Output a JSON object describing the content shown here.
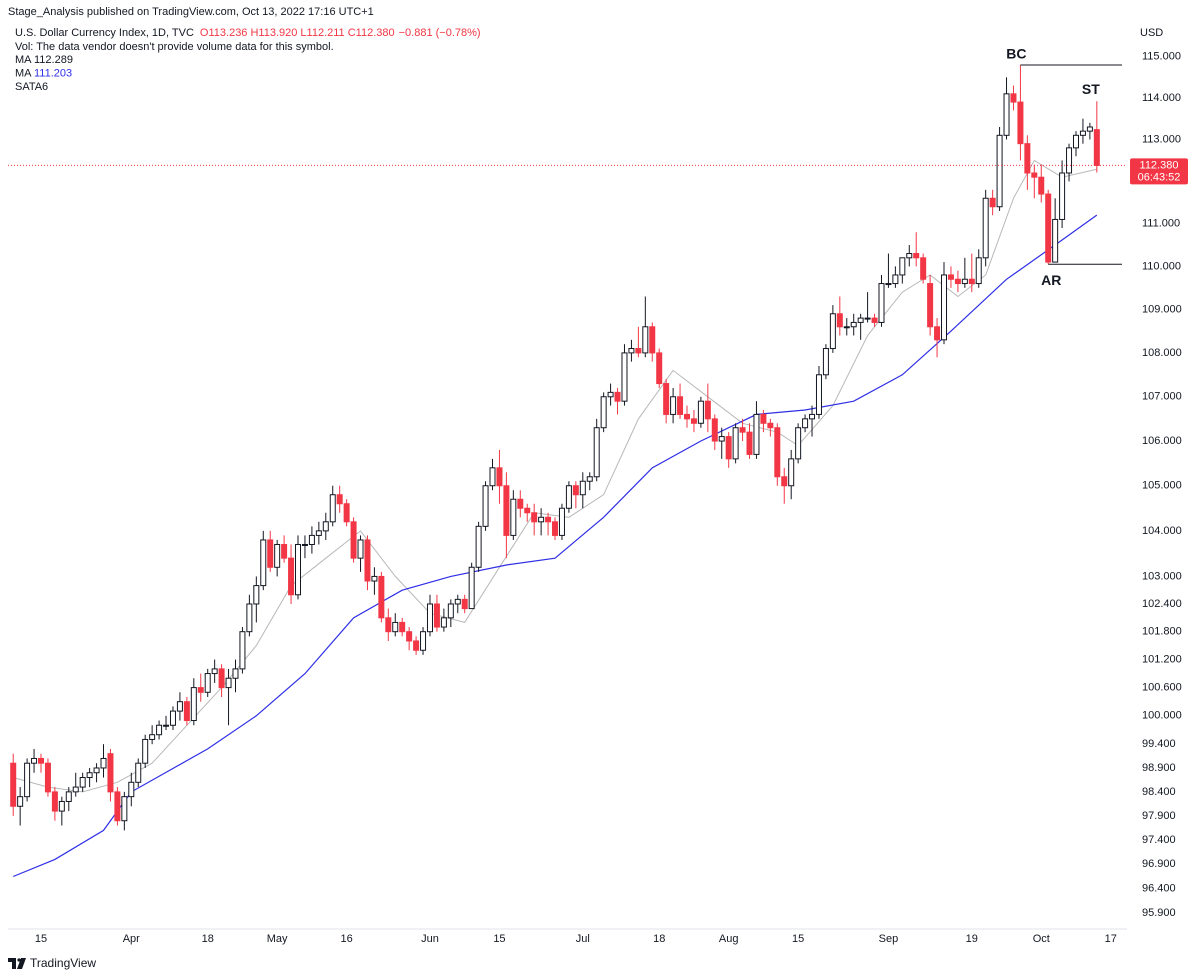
{
  "header": {
    "publisher": "Stage_Analysis published on TradingView.com, Oct 13, 2022 17:16 UTC+1",
    "footer_brand": "TradingView"
  },
  "chart_data": {
    "type": "candlestick",
    "symbol": "U.S. Dollar Currency Index, 1D, TVC",
    "ohlc_text": "O113.236 H113.920 L112.211 C112.380",
    "change_text": "−0.881 (−0.78%)",
    "volume_note": "Vol: The data vendor doesn't provide volume data for this symbol.",
    "axis_unit": "USD",
    "last_price_label": "112.380",
    "countdown": "06:43:52",
    "log": true,
    "grid": false,
    "up_color": "#ffffff",
    "down_color": "#f23645",
    "outline_color": "#131722",
    "xlim": [
      -0.75,
      160.2
    ],
    "ylim": [
      95.6,
      115.9
    ],
    "xticks": [
      {
        "value": 4,
        "label": "15"
      },
      {
        "value": 17,
        "label": "Apr"
      },
      {
        "value": 28,
        "label": "18"
      },
      {
        "value": 38,
        "label": "May"
      },
      {
        "value": 48,
        "label": "16"
      },
      {
        "value": 60,
        "label": "Jun"
      },
      {
        "value": 70,
        "label": "15"
      },
      {
        "value": 82,
        "label": "Jul"
      },
      {
        "value": 93,
        "label": "18"
      },
      {
        "value": 103,
        "label": "Aug"
      },
      {
        "value": 113,
        "label": "15"
      },
      {
        "value": 126,
        "label": "Sep"
      },
      {
        "value": 138,
        "label": "19"
      },
      {
        "value": 148,
        "label": "Oct"
      },
      {
        "value": 158,
        "label": "17"
      }
    ],
    "yticks": [
      {
        "value": 115,
        "label": "115.000"
      },
      {
        "value": 114,
        "label": "114.000"
      },
      {
        "value": 113,
        "label": "113.000"
      },
      {
        "value": 111,
        "label": "111.000"
      },
      {
        "value": 110,
        "label": "110.000"
      },
      {
        "value": 109,
        "label": "109.000"
      },
      {
        "value": 108,
        "label": "108.000"
      },
      {
        "value": 107,
        "label": "107.000"
      },
      {
        "value": 106,
        "label": "106.000"
      },
      {
        "value": 105,
        "label": "105.000"
      },
      {
        "value": 104,
        "label": "104.000"
      },
      {
        "value": 103,
        "label": "103.000"
      },
      {
        "value": 102.4,
        "label": "102.400"
      },
      {
        "value": 101.8,
        "label": "101.800"
      },
      {
        "value": 101.2,
        "label": "101.200"
      },
      {
        "value": 100.6,
        "label": "100.600"
      },
      {
        "value": 100,
        "label": "100.000"
      },
      {
        "value": 99.4,
        "label": "99.400"
      },
      {
        "value": 98.9,
        "label": "98.900"
      },
      {
        "value": 98.4,
        "label": "98.400"
      },
      {
        "value": 97.9,
        "label": "97.900"
      },
      {
        "value": 97.4,
        "label": "97.400"
      },
      {
        "value": 96.9,
        "label": "96.900"
      },
      {
        "value": 96.4,
        "label": "96.400"
      },
      {
        "value": 95.9,
        "label": "95.900"
      }
    ],
    "candles": [
      [
        99.0,
        99.2,
        97.9,
        98.1
      ],
      [
        98.1,
        98.5,
        97.7,
        98.3
      ],
      [
        98.3,
        99.1,
        98.2,
        99.0
      ],
      [
        99.0,
        99.3,
        98.8,
        99.1
      ],
      [
        99.1,
        99.2,
        98.8,
        99.0
      ],
      [
        99.0,
        99.1,
        98.3,
        98.4
      ],
      [
        98.4,
        98.5,
        97.8,
        98.0
      ],
      [
        98.0,
        98.3,
        97.7,
        98.2
      ],
      [
        98.2,
        98.5,
        98.0,
        98.4
      ],
      [
        98.4,
        98.8,
        98.3,
        98.5
      ],
      [
        98.5,
        98.8,
        98.4,
        98.7
      ],
      [
        98.7,
        98.9,
        98.5,
        98.8
      ],
      [
        98.8,
        99.0,
        98.6,
        98.9
      ],
      [
        98.9,
        99.4,
        98.7,
        99.1
      ],
      [
        99.2,
        99.3,
        98.2,
        98.4
      ],
      [
        98.4,
        98.5,
        97.7,
        97.8
      ],
      [
        97.8,
        98.4,
        97.6,
        98.3
      ],
      [
        98.3,
        98.8,
        98.1,
        98.6
      ],
      [
        98.6,
        99.1,
        98.5,
        99.0
      ],
      [
        99.0,
        99.6,
        98.9,
        99.5
      ],
      [
        99.5,
        99.8,
        99.4,
        99.6
      ],
      [
        99.6,
        99.9,
        99.5,
        99.8
      ],
      [
        99.8,
        100.0,
        99.7,
        99.8
      ],
      [
        99.8,
        100.2,
        99.7,
        100.1
      ],
      [
        100.1,
        100.5,
        99.9,
        100.3
      ],
      [
        100.3,
        100.4,
        99.8,
        99.9
      ],
      [
        99.9,
        100.8,
        99.8,
        100.6
      ],
      [
        100.6,
        100.9,
        100.3,
        100.5
      ],
      [
        100.5,
        101.0,
        100.4,
        100.9
      ],
      [
        100.9,
        101.2,
        100.7,
        101.0
      ],
      [
        101.0,
        101.1,
        100.4,
        100.6
      ],
      [
        100.6,
        101.0,
        99.8,
        100.8
      ],
      [
        100.8,
        101.2,
        100.5,
        101.0
      ],
      [
        101.0,
        101.9,
        100.9,
        101.8
      ],
      [
        101.8,
        102.6,
        101.7,
        102.4
      ],
      [
        102.4,
        103.0,
        102.0,
        102.8
      ],
      [
        102.8,
        104.0,
        102.7,
        103.8
      ],
      [
        103.8,
        104.0,
        103.1,
        103.2
      ],
      [
        103.2,
        103.8,
        103.0,
        103.7
      ],
      [
        103.7,
        103.9,
        103.3,
        103.4
      ],
      [
        103.4,
        103.7,
        102.4,
        102.6
      ],
      [
        102.6,
        103.9,
        102.5,
        103.7
      ],
      [
        103.7,
        103.9,
        103.4,
        103.7
      ],
      [
        103.7,
        104.1,
        103.5,
        103.9
      ],
      [
        103.9,
        104.2,
        103.7,
        104.0
      ],
      [
        104.0,
        104.4,
        103.8,
        104.2
      ],
      [
        104.2,
        105.0,
        104.1,
        104.8
      ],
      [
        104.8,
        105.0,
        104.4,
        104.6
      ],
      [
        104.6,
        104.7,
        104.1,
        104.2
      ],
      [
        104.2,
        104.3,
        103.3,
        103.4
      ],
      [
        103.4,
        103.9,
        103.1,
        103.8
      ],
      [
        103.8,
        103.9,
        102.7,
        102.9
      ],
      [
        102.9,
        103.2,
        102.6,
        103.0
      ],
      [
        103.0,
        103.1,
        102.0,
        102.1
      ],
      [
        102.1,
        102.3,
        101.6,
        101.8
      ],
      [
        101.8,
        102.2,
        101.7,
        102.0
      ],
      [
        102.0,
        102.1,
        101.7,
        101.8
      ],
      [
        101.8,
        101.9,
        101.4,
        101.6
      ],
      [
        101.6,
        101.7,
        101.3,
        101.4
      ],
      [
        101.4,
        101.9,
        101.3,
        101.8
      ],
      [
        101.8,
        102.6,
        101.7,
        102.4
      ],
      [
        102.4,
        102.6,
        101.8,
        101.9
      ],
      [
        101.9,
        102.3,
        101.8,
        102.1
      ],
      [
        102.1,
        102.5,
        101.9,
        102.4
      ],
      [
        102.4,
        102.6,
        102.2,
        102.5
      ],
      [
        102.5,
        102.6,
        102.2,
        102.3
      ],
      [
        102.3,
        103.3,
        102.3,
        103.2
      ],
      [
        103.2,
        104.2,
        103.1,
        104.1
      ],
      [
        104.1,
        105.1,
        104.0,
        105.0
      ],
      [
        105.0,
        105.6,
        104.9,
        105.4
      ],
      [
        105.4,
        105.8,
        104.6,
        105.0
      ],
      [
        105.0,
        105.3,
        103.4,
        103.9
      ],
      [
        103.9,
        104.9,
        103.8,
        104.7
      ],
      [
        104.7,
        104.9,
        104.3,
        104.5
      ],
      [
        104.5,
        104.6,
        104.2,
        104.4
      ],
      [
        104.4,
        104.6,
        103.9,
        104.2
      ],
      [
        104.2,
        104.5,
        103.9,
        104.3
      ],
      [
        104.3,
        104.4,
        103.9,
        104.2
      ],
      [
        104.2,
        104.3,
        103.8,
        103.9
      ],
      [
        103.9,
        104.6,
        103.8,
        104.5
      ],
      [
        104.5,
        105.1,
        104.4,
        105.0
      ],
      [
        105.0,
        105.1,
        104.5,
        104.8
      ],
      [
        104.8,
        105.3,
        104.5,
        105.1
      ],
      [
        105.1,
        105.3,
        104.9,
        105.2
      ],
      [
        105.2,
        106.5,
        105.1,
        106.3
      ],
      [
        106.3,
        107.1,
        106.2,
        107.0
      ],
      [
        107.0,
        107.3,
        106.8,
        107.1
      ],
      [
        107.1,
        107.2,
        106.6,
        106.9
      ],
      [
        106.9,
        108.2,
        106.8,
        108.0
      ],
      [
        108.0,
        108.3,
        107.8,
        108.1
      ],
      [
        108.1,
        108.6,
        107.9,
        108.0
      ],
      [
        108.0,
        109.3,
        107.9,
        108.6
      ],
      [
        108.6,
        108.7,
        107.8,
        108.0
      ],
      [
        108.0,
        108.1,
        107.2,
        107.3
      ],
      [
        107.3,
        107.4,
        106.4,
        106.6
      ],
      [
        106.6,
        107.2,
        106.4,
        107.0
      ],
      [
        107.0,
        107.3,
        106.5,
        106.6
      ],
      [
        106.6,
        106.8,
        106.3,
        106.5
      ],
      [
        106.5,
        106.7,
        106.2,
        106.4
      ],
      [
        106.4,
        107.0,
        106.3,
        106.9
      ],
      [
        106.9,
        107.3,
        106.2,
        106.5
      ],
      [
        106.5,
        106.6,
        105.8,
        106.0
      ],
      [
        106.0,
        106.3,
        105.6,
        106.1
      ],
      [
        106.1,
        106.2,
        105.4,
        105.6
      ],
      [
        105.6,
        106.4,
        105.5,
        106.3
      ],
      [
        106.3,
        106.5,
        106.0,
        106.2
      ],
      [
        106.2,
        106.4,
        105.6,
        105.7
      ],
      [
        105.7,
        106.9,
        105.6,
        106.6
      ],
      [
        106.6,
        106.7,
        106.2,
        106.4
      ],
      [
        106.4,
        106.5,
        106.1,
        106.3
      ],
      [
        106.3,
        106.4,
        105.0,
        105.2
      ],
      [
        105.2,
        105.4,
        104.6,
        105.0
      ],
      [
        105.0,
        105.8,
        104.7,
        105.6
      ],
      [
        105.6,
        106.4,
        105.5,
        106.3
      ],
      [
        106.3,
        106.6,
        106.2,
        106.5
      ],
      [
        106.5,
        106.8,
        106.1,
        106.6
      ],
      [
        106.6,
        107.7,
        106.5,
        107.5
      ],
      [
        107.5,
        108.2,
        107.4,
        108.1
      ],
      [
        108.1,
        109.1,
        108.0,
        108.9
      ],
      [
        108.9,
        109.3,
        108.4,
        108.6
      ],
      [
        108.6,
        108.8,
        108.4,
        108.6
      ],
      [
        108.6,
        108.9,
        108.4,
        108.7
      ],
      [
        108.7,
        108.9,
        108.3,
        108.8
      ],
      [
        108.8,
        109.4,
        108.7,
        108.8
      ],
      [
        108.8,
        108.9,
        108.6,
        108.7
      ],
      [
        108.7,
        109.8,
        108.6,
        109.6
      ],
      [
        109.6,
        110.3,
        109.5,
        109.6
      ],
      [
        109.6,
        110.0,
        109.5,
        109.8
      ],
      [
        109.8,
        110.2,
        109.6,
        110.2
      ],
      [
        110.2,
        110.5,
        110.0,
        110.3
      ],
      [
        110.3,
        110.8,
        110.0,
        110.2
      ],
      [
        110.2,
        110.3,
        109.6,
        109.7
      ],
      [
        109.6,
        109.8,
        108.4,
        108.6
      ],
      [
        108.6,
        108.8,
        107.9,
        108.3
      ],
      [
        108.3,
        110.1,
        108.2,
        109.8
      ],
      [
        109.8,
        110.0,
        109.5,
        109.7
      ],
      [
        109.7,
        109.9,
        109.4,
        109.6
      ],
      [
        109.6,
        110.2,
        109.5,
        109.7
      ],
      [
        109.7,
        110.3,
        109.4,
        109.6
      ],
      [
        109.6,
        110.4,
        109.5,
        110.2
      ],
      [
        110.2,
        111.8,
        110.0,
        111.6
      ],
      [
        111.6,
        111.8,
        111.2,
        111.4
      ],
      [
        111.4,
        113.3,
        111.3,
        113.1
      ],
      [
        113.1,
        114.5,
        113.0,
        114.1
      ],
      [
        114.1,
        114.3,
        113.7,
        113.9
      ],
      [
        113.9,
        114.8,
        112.5,
        112.9
      ],
      [
        112.9,
        113.1,
        111.8,
        112.2
      ],
      [
        112.2,
        112.4,
        111.6,
        112.1
      ],
      [
        112.1,
        112.4,
        111.5,
        111.7
      ],
      [
        111.7,
        111.8,
        110.05,
        110.1
      ],
      [
        110.1,
        111.6,
        110.1,
        111.1
      ],
      [
        111.1,
        112.5,
        110.9,
        112.2
      ],
      [
        112.2,
        112.9,
        112.0,
        112.8
      ],
      [
        112.8,
        113.2,
        112.6,
        113.1
      ],
      [
        113.1,
        113.5,
        112.9,
        113.2
      ],
      [
        113.2,
        113.4,
        113.0,
        113.3
      ],
      [
        113.236,
        113.92,
        112.211,
        112.38
      ]
    ],
    "series": [
      {
        "name": "MA",
        "color": "#b8b8b8",
        "label_color": "#131722",
        "x": [
          0,
          5,
          10,
          15,
          20,
          25,
          30,
          35,
          40,
          45,
          50,
          55,
          60,
          65,
          70,
          75,
          80,
          85,
          90,
          95,
          100,
          105,
          110,
          113,
          118,
          123,
          128,
          132,
          136,
          140,
          144,
          147,
          151,
          156
        ],
        "values": [
          98.7,
          98.5,
          98.4,
          98.6,
          99.0,
          99.8,
          100.6,
          101.5,
          102.8,
          103.4,
          104.0,
          103.0,
          102.2,
          102.0,
          103.2,
          104.4,
          104.3,
          104.8,
          106.5,
          107.6,
          107.0,
          106.4,
          106.2,
          105.9,
          106.8,
          108.4,
          109.4,
          109.8,
          109.3,
          109.8,
          111.6,
          112.5,
          112.1,
          112.289
        ]
      },
      {
        "name": "MA",
        "color": "#2e2ee6",
        "label_color": "#2e2ee6",
        "x": [
          0,
          6,
          13,
          17,
          28,
          35,
          42,
          49,
          56,
          63,
          71,
          78,
          85,
          92,
          99,
          107,
          114,
          121,
          128,
          135,
          143,
          150,
          156
        ],
        "values": [
          96.65,
          97.0,
          97.6,
          98.4,
          99.3,
          100.0,
          100.9,
          102.1,
          102.7,
          103.0,
          103.25,
          103.4,
          104.3,
          105.4,
          106.0,
          106.6,
          106.7,
          106.9,
          107.5,
          108.5,
          109.7,
          110.5,
          111.203
        ]
      }
    ],
    "indicators": [
      {
        "name": "SATA",
        "value": 6
      }
    ],
    "annotations": [
      {
        "label": "BC",
        "x": 145,
        "level": 114.8
      },
      {
        "label": "ST",
        "x": 156
      },
      {
        "label": "AR",
        "x": 149,
        "level": 110.05
      }
    ]
  }
}
